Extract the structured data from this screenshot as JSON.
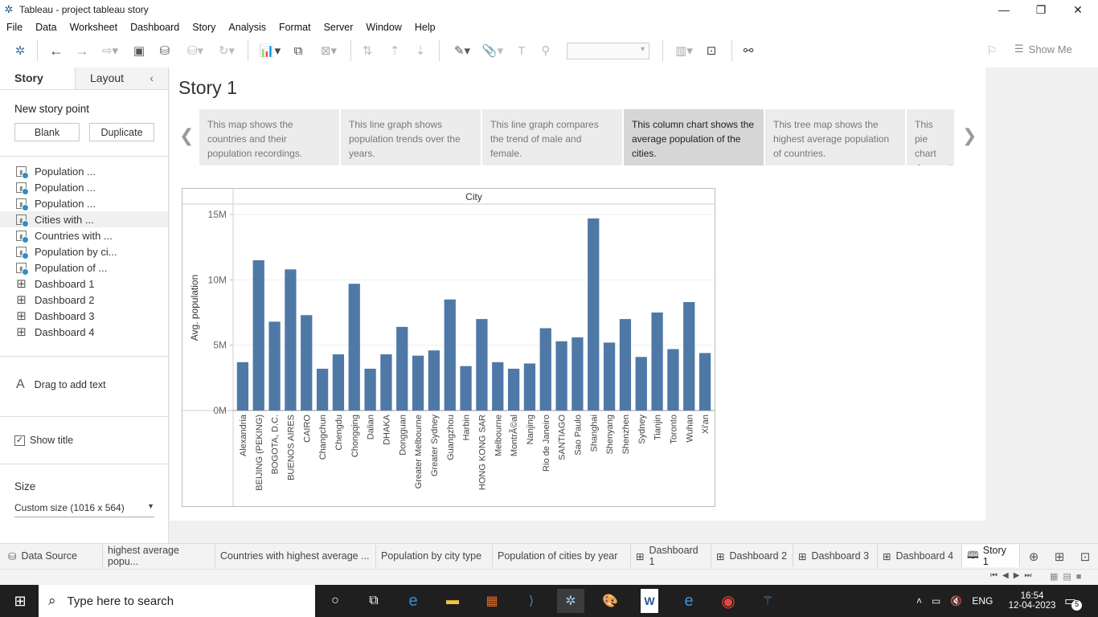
{
  "window": {
    "title": "Tableau - project tableau story"
  },
  "menu": [
    "File",
    "Data",
    "Worksheet",
    "Dashboard",
    "Story",
    "Analysis",
    "Format",
    "Server",
    "Window",
    "Help"
  ],
  "toolbar": {
    "show_me": "Show Me"
  },
  "left_panel": {
    "tabs": [
      "Story",
      "Layout"
    ],
    "new_story_point": "New story point",
    "blank": "Blank",
    "duplicate": "Duplicate",
    "sheets": [
      {
        "label": "Population ...",
        "kind": "worksheet"
      },
      {
        "label": "Population  ...",
        "kind": "worksheet"
      },
      {
        "label": "Population  ...",
        "kind": "worksheet"
      },
      {
        "label": "Cities with ...",
        "kind": "worksheet"
      },
      {
        "label": "Countries with ...",
        "kind": "worksheet"
      },
      {
        "label": "Population by ci...",
        "kind": "worksheet"
      },
      {
        "label": "Population  of ...",
        "kind": "worksheet"
      },
      {
        "label": "Dashboard 1",
        "kind": "dashboard"
      },
      {
        "label": "Dashboard 2",
        "kind": "dashboard"
      },
      {
        "label": "Dashboard 3",
        "kind": "dashboard"
      },
      {
        "label": "Dashboard 4",
        "kind": "dashboard"
      }
    ],
    "drag_text": "Drag to add text",
    "show_title": "Show title",
    "size_label": "Size",
    "size_value": "Custom size (1016 x 564)"
  },
  "story": {
    "title": "Story 1",
    "points": [
      "This map shows the countries and their population recordings.",
      "This line graph shows population trends  over the years.",
      "This line graph compares the trend of male and female.",
      "This  column chart shows the average population  of the  cities.",
      "This tree map shows the highest average population of countries.",
      "This pie chart demonstrates population"
    ]
  },
  "chart_data": {
    "type": "bar",
    "header": "City",
    "ylabel": "Avg. population",
    "yticks": [
      "0M",
      "5M",
      "10M",
      "15M"
    ],
    "ylim": [
      0,
      15
    ],
    "bar_color": "#4e79a7",
    "categories": [
      "Alexandria",
      "BEIJING (PEKING)",
      "BOGOTA, D.C.",
      "BUENOS AIRES",
      "CAIRO",
      "Changchun",
      "Chengdu",
      "Chongqing",
      "Dalian",
      "DHAKA",
      "Dongguan",
      "Greater Melbourne",
      "Greater Sydney",
      "Guangzhou",
      "Harbin",
      "HONG KONG SAR",
      "Melbourne",
      "MontrÃ©al",
      "Nanjing",
      "Rio de Janeiro",
      "SANTIAGO",
      "Sao Paulo",
      "Shanghai",
      "Shenyang",
      "Shenzhen",
      "Sydney",
      "Tianjin",
      "Toronto",
      "Wuhan",
      "Xi'an"
    ],
    "values": [
      3.7,
      11.5,
      6.8,
      10.8,
      7.3,
      3.2,
      4.3,
      9.7,
      3.2,
      4.3,
      6.4,
      4.2,
      4.6,
      8.5,
      3.4,
      7.0,
      3.7,
      3.2,
      3.6,
      6.3,
      5.3,
      5.6,
      14.7,
      5.2,
      7.0,
      4.1,
      7.5,
      4.7,
      8.3,
      4.4
    ]
  },
  "sheet_tabs": [
    "Data Source",
    "highest average popu...",
    "Countries with highest average  ...",
    "Population by city type",
    "Population  of cities by year",
    "Dashboard 1",
    "Dashboard 2",
    "Dashboard 3",
    "Dashboard 4",
    "Story 1"
  ],
  "taskbar": {
    "search_placeholder": "Type here to search",
    "language": "ENG",
    "time": "16:54",
    "date": "12-04-2023",
    "notifications": "5"
  }
}
